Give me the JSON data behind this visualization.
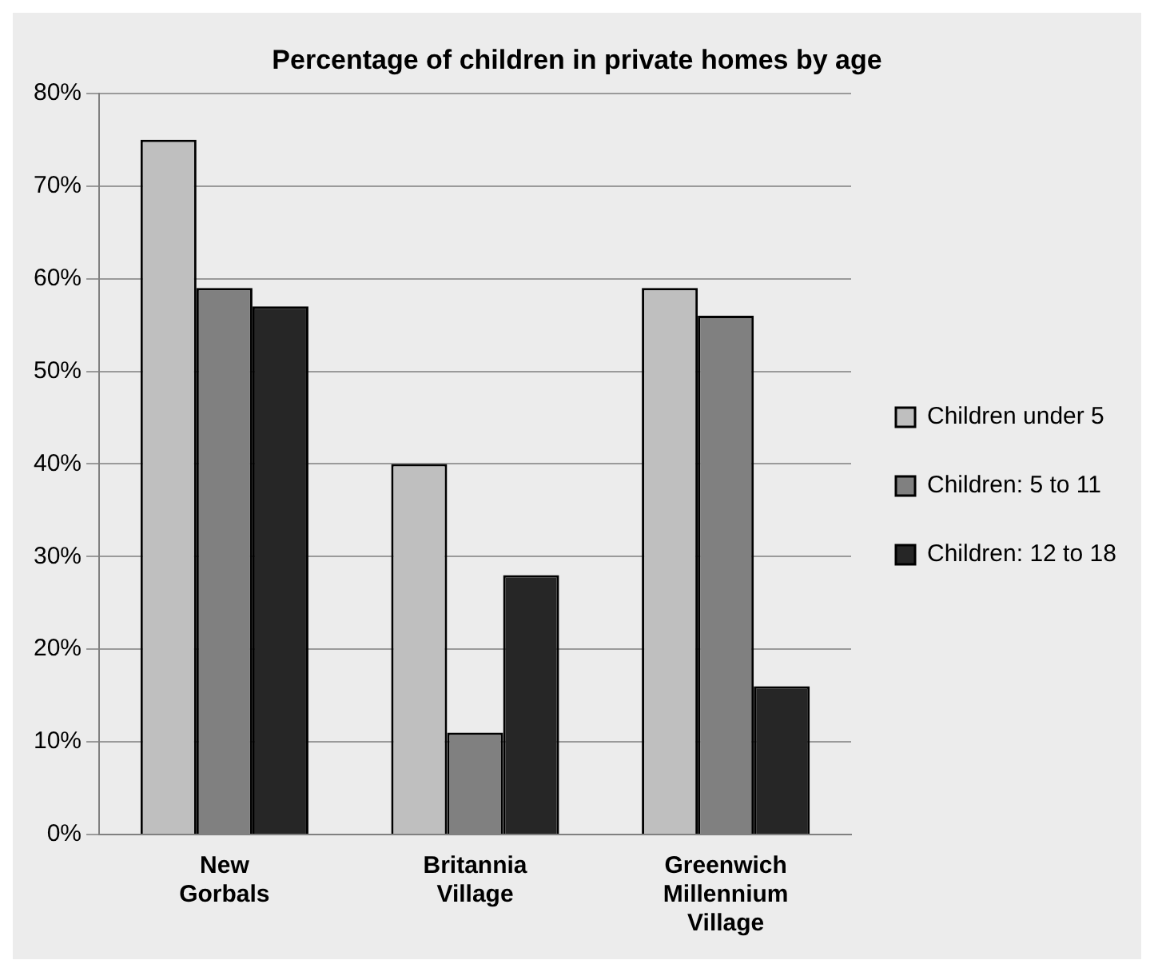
{
  "chart_data": {
    "type": "bar",
    "title": "Percentage of children in private homes by age",
    "categories": [
      "New Gorbals",
      "Britannia Village",
      "Greenwich Millennium Village"
    ],
    "series": [
      {
        "name": "Children under 5",
        "color": "#bfbfbf",
        "values": [
          75,
          40,
          59
        ]
      },
      {
        "name": "Children: 5 to 11",
        "color": "#808080",
        "values": [
          59,
          11,
          56
        ]
      },
      {
        "name": "Children: 12 to 18",
        "color": "#262626",
        "values": [
          57,
          28,
          16
        ]
      }
    ],
    "ylim": [
      0,
      80
    ],
    "yticks": [
      {
        "value": 0,
        "label": "0%"
      },
      {
        "value": 10,
        "label": "10%"
      },
      {
        "value": 20,
        "label": "20%"
      },
      {
        "value": 30,
        "label": "30%"
      },
      {
        "value": 40,
        "label": "40%"
      },
      {
        "value": 50,
        "label": "50%"
      },
      {
        "value": 60,
        "label": "60%"
      },
      {
        "value": 70,
        "label": "70%"
      },
      {
        "value": 80,
        "label": "80%"
      }
    ],
    "grid": "y",
    "legend": "right"
  }
}
